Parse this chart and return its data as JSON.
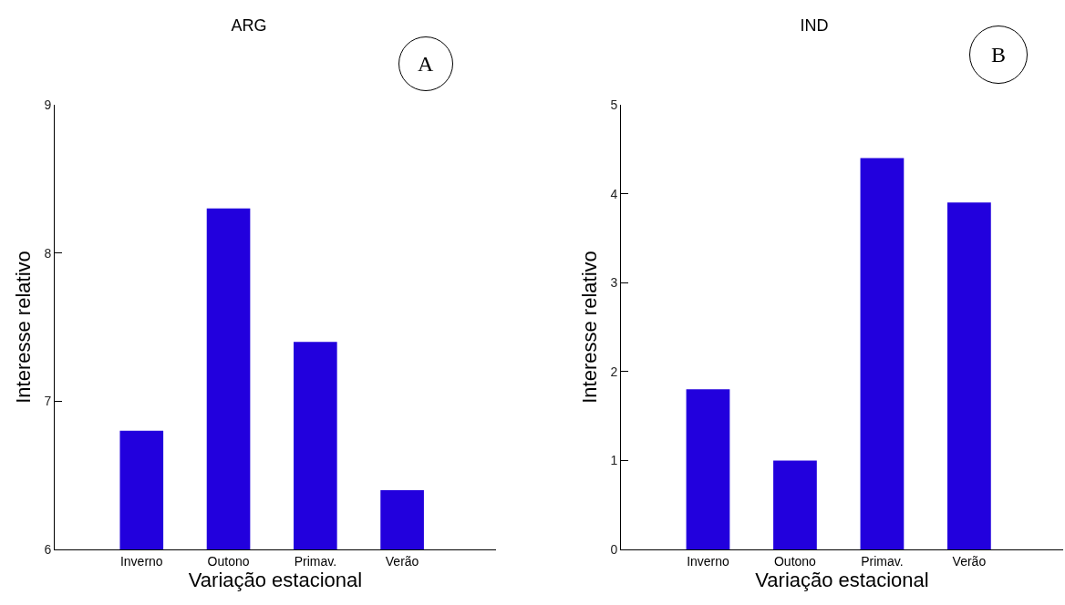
{
  "chart_data": [
    {
      "type": "bar",
      "title": "ARG",
      "xlabel": "Variação estacional",
      "ylabel": "Interesse relativo",
      "categories": [
        "Inverno",
        "Outono",
        "Primav.",
        "Verão"
      ],
      "values": [
        6.8,
        8.3,
        7.4,
        6.4
      ],
      "color": "#2200dd",
      "ylim": [
        6,
        9
      ],
      "yticks": [
        6,
        7,
        8,
        9
      ],
      "grid": false,
      "legend": false,
      "annotations": [
        "A"
      ]
    },
    {
      "type": "bar",
      "title": "IND",
      "xlabel": "Variação estacional",
      "ylabel": "Interesse relativo",
      "categories": [
        "Inverno",
        "Outono",
        "Primav.",
        "Verão"
      ],
      "values": [
        1.8,
        1.0,
        4.4,
        3.9
      ],
      "color": "#2200dd",
      "ylim": [
        0,
        5
      ],
      "yticks": [
        0,
        1,
        2,
        3,
        4,
        5
      ],
      "grid": false,
      "legend": false,
      "annotations": [
        "B"
      ]
    }
  ]
}
